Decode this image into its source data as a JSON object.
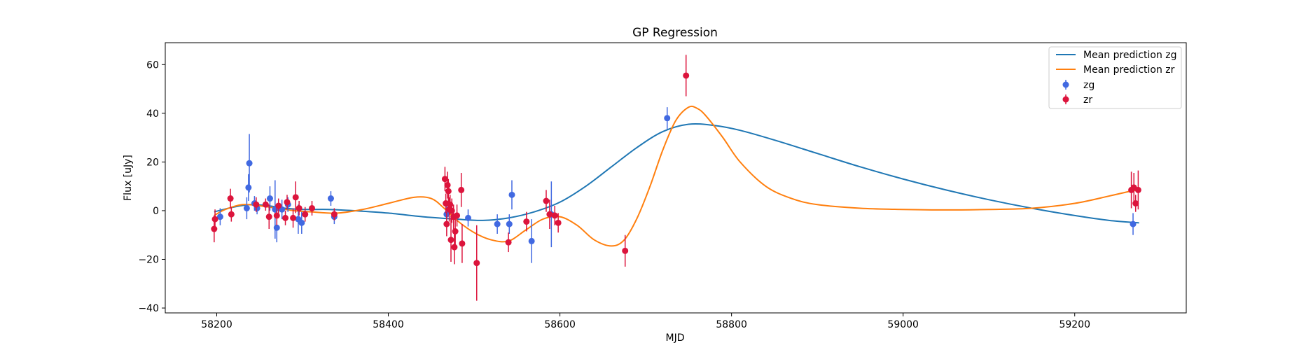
{
  "chart_data": {
    "type": "scatter",
    "title": "GP Regression",
    "xlabel": "MJD",
    "ylabel": "Flux [uJy]",
    "xlim": [
      58140,
      59330
    ],
    "ylim": [
      -42,
      69
    ],
    "xticks": [
      58200,
      58400,
      58600,
      58800,
      59000,
      59200
    ],
    "yticks": [
      -40,
      -20,
      0,
      20,
      40,
      60
    ],
    "grid": false,
    "legend_position": "top-right",
    "series": [
      {
        "name": "Mean prediction zg",
        "kind": "line",
        "color": "#1f77b4",
        "x": [
          58197,
          58220,
          58240,
          58260,
          58280,
          58300,
          58330,
          58360,
          58400,
          58440,
          58480,
          58510,
          58540,
          58570,
          58600,
          58630,
          58660,
          58690,
          58720,
          58750,
          58780,
          58810,
          58850,
          58900,
          58950,
          59000,
          59050,
          59100,
          59150,
          59200,
          59240,
          59275
        ],
        "y": [
          -0.5,
          1.5,
          2.5,
          2.0,
          1.0,
          0.5,
          0.5,
          0.0,
          -1.0,
          -2.5,
          -3.5,
          -4.0,
          -3.0,
          -0.5,
          3.5,
          10.0,
          18.0,
          26.0,
          32.5,
          35.5,
          35.0,
          33.0,
          29.0,
          23.5,
          18.0,
          13.0,
          8.5,
          4.5,
          1.0,
          -2.0,
          -4.0,
          -5.0
        ]
      },
      {
        "name": "Mean prediction zr",
        "kind": "line",
        "color": "#ff7f0e",
        "x": [
          58197,
          58210,
          58230,
          58250,
          58270,
          58290,
          58310,
          58340,
          58370,
          58400,
          58430,
          58450,
          58465,
          58480,
          58500,
          58520,
          58540,
          58560,
          58580,
          58600,
          58620,
          58640,
          58660,
          58675,
          58690,
          58705,
          58720,
          58735,
          58750,
          58760,
          58770,
          58790,
          58810,
          58840,
          58870,
          58900,
          58950,
          59000,
          59050,
          59100,
          59150,
          59200,
          59240,
          59265,
          59275
        ],
        "y": [
          -2.0,
          0.5,
          2.5,
          2.0,
          1.0,
          0.0,
          -0.5,
          -1.0,
          0.5,
          3.0,
          5.5,
          5.0,
          1.0,
          -4.0,
          -9.0,
          -12.0,
          -12.5,
          -8.0,
          -3.5,
          -2.5,
          -6.0,
          -12.0,
          -14.5,
          -12.0,
          -3.0,
          10.0,
          25.0,
          37.0,
          42.5,
          42.0,
          39.0,
          30.0,
          20.0,
          10.0,
          5.0,
          2.5,
          1.0,
          0.5,
          0.3,
          0.5,
          1.0,
          3.0,
          6.0,
          8.0,
          8.5
        ]
      },
      {
        "name": "zg",
        "kind": "errorbar",
        "color": "#4169e1",
        "points": [
          [
            58204,
            -2.5,
            3.5
          ],
          [
            58235,
            1.0,
            4.5
          ],
          [
            58237,
            9.5,
            5.5
          ],
          [
            58238,
            19.5,
            12.0
          ],
          [
            58244,
            3.0,
            3.0
          ],
          [
            58247,
            1.0,
            2.5
          ],
          [
            58262,
            5.0,
            5.0
          ],
          [
            58268,
            0.5,
            12.0
          ],
          [
            58270,
            -7.0,
            6.0
          ],
          [
            58276,
            0.5,
            4.0
          ],
          [
            58283,
            2.5,
            3.0
          ],
          [
            58295,
            -3.5,
            6.0
          ],
          [
            58299,
            -5.0,
            4.5
          ],
          [
            58333,
            5.0,
            3.0
          ],
          [
            58337,
            -2.5,
            3.0
          ],
          [
            58468,
            -1.5,
            4.0
          ],
          [
            58493,
            -3.0,
            3.5
          ],
          [
            58527,
            -5.5,
            4.0
          ],
          [
            58541,
            -5.5,
            4.0
          ],
          [
            58544,
            6.5,
            6.0
          ],
          [
            58567,
            -12.5,
            9.0
          ],
          [
            58590,
            -1.5,
            13.5
          ],
          [
            58725,
            38.0,
            4.5
          ],
          [
            59268,
            -5.5,
            4.5
          ]
        ]
      },
      {
        "name": "zr",
        "kind": "errorbar",
        "color": "#dc143c",
        "points": [
          [
            58197,
            -7.5,
            5.5
          ],
          [
            58198,
            -3.5,
            4.0
          ],
          [
            58216,
            5.0,
            4.0
          ],
          [
            58217,
            -1.5,
            3.0
          ],
          [
            58246,
            2.5,
            3.0
          ],
          [
            58257,
            2.5,
            2.5
          ],
          [
            58261,
            -2.5,
            5.0
          ],
          [
            58270,
            -2.0,
            4.0
          ],
          [
            58272,
            2.0,
            3.0
          ],
          [
            58280,
            -3.0,
            3.0
          ],
          [
            58282,
            3.5,
            3.0
          ],
          [
            58289,
            -3.0,
            4.0
          ],
          [
            58292,
            5.5,
            6.5
          ],
          [
            58296,
            1.0,
            3.0
          ],
          [
            58303,
            -1.5,
            3.0
          ],
          [
            58311,
            1.0,
            3.0
          ],
          [
            58337,
            -1.5,
            2.5
          ],
          [
            58466,
            13.0,
            5.0
          ],
          [
            58467,
            3.0,
            4.0
          ],
          [
            58468,
            -5.5,
            5.0
          ],
          [
            58469,
            10.5,
            5.5
          ],
          [
            58470,
            8.0,
            5.0
          ],
          [
            58471,
            0.5,
            5.0
          ],
          [
            58472,
            2.5,
            4.0
          ],
          [
            58473,
            -12.0,
            9.0
          ],
          [
            58474,
            0.0,
            5.0
          ],
          [
            58476,
            -2.5,
            5.0
          ],
          [
            58477,
            -15.0,
            7.0
          ],
          [
            58478,
            -8.5,
            6.0
          ],
          [
            58480,
            -2.0,
            4.5
          ],
          [
            58485,
            8.5,
            7.0
          ],
          [
            58486,
            -13.5,
            8.0
          ],
          [
            58503,
            -21.5,
            15.5
          ],
          [
            58540,
            -13.0,
            4.0
          ],
          [
            58561,
            -4.5,
            4.0
          ],
          [
            58584,
            4.0,
            4.5
          ],
          [
            58588,
            -1.5,
            6.0
          ],
          [
            58594,
            -2.0,
            4.0
          ],
          [
            58598,
            -5.0,
            4.0
          ],
          [
            58676,
            -16.5,
            6.5
          ],
          [
            58747,
            55.5,
            8.5
          ],
          [
            59266,
            8.5,
            7.5
          ],
          [
            59269,
            9.5,
            6.0
          ],
          [
            59271,
            3.0,
            3.5
          ],
          [
            59274,
            8.5,
            8.0
          ]
        ]
      }
    ]
  }
}
